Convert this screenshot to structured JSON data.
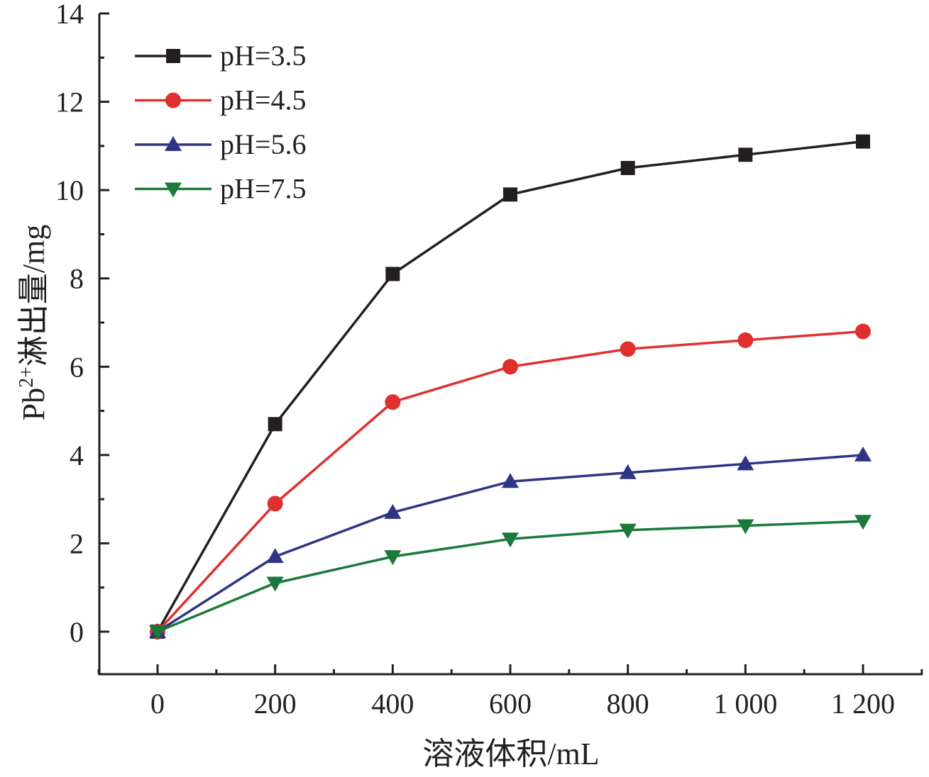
{
  "chart_data": {
    "type": "line",
    "title": "",
    "xlabel": "溶液体积/mL",
    "ylabel_parts": {
      "base": "Pb",
      "sup": "2+",
      "rest": "淋出量/mg"
    },
    "ylabel": "Pb2+淋出量/mg",
    "x": [
      0,
      200,
      400,
      600,
      800,
      1000,
      1200
    ],
    "x_tick_labels": [
      "0",
      "200",
      "400",
      "600",
      "800",
      "1 000",
      "1 200"
    ],
    "y_ticks": [
      0,
      2,
      4,
      6,
      8,
      10,
      12,
      14
    ],
    "y_tick_labels": [
      "0",
      "2",
      "4",
      "6",
      "8",
      "10",
      "12",
      "14"
    ],
    "xlim": [
      -100,
      1300
    ],
    "ylim": [
      -0.95,
      14
    ],
    "grid": false,
    "legend_position": "top-left",
    "series": [
      {
        "name": "pH=3.5",
        "color": "#231f20",
        "marker": "square",
        "values": [
          0,
          4.7,
          8.1,
          9.9,
          10.5,
          10.8,
          11.1
        ]
      },
      {
        "name": "pH=4.5",
        "color": "#e0302d",
        "marker": "circle",
        "values": [
          0,
          2.9,
          5.2,
          6.0,
          6.4,
          6.6,
          6.8
        ]
      },
      {
        "name": "pH=5.6",
        "color": "#2e3584",
        "marker": "triangle-up",
        "values": [
          0,
          1.7,
          2.7,
          3.4,
          3.6,
          3.8,
          4.0
        ]
      },
      {
        "name": "pH=7.5",
        "color": "#1a7a3a",
        "marker": "triangle-down",
        "values": [
          0,
          1.1,
          1.7,
          2.1,
          2.3,
          2.4,
          2.5
        ]
      }
    ]
  }
}
